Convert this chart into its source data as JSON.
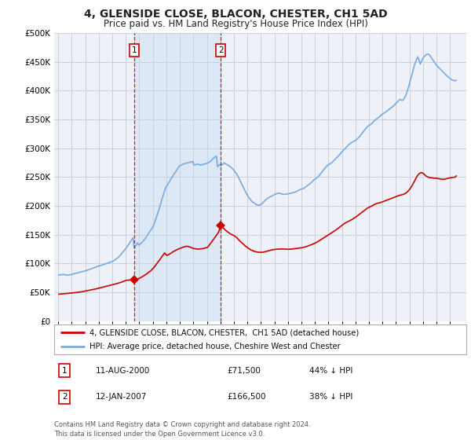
{
  "title": "4, GLENSIDE CLOSE, BLACON, CHESTER, CH1 5AD",
  "subtitle": "Price paid vs. HM Land Registry's House Price Index (HPI)",
  "title_fontsize": 10,
  "subtitle_fontsize": 8.5,
  "ylim": [
    0,
    500000
  ],
  "yticks": [
    0,
    50000,
    100000,
    150000,
    200000,
    250000,
    300000,
    350000,
    400000,
    450000,
    500000
  ],
  "background_color": "#ffffff",
  "chart_bg_color": "#eef2f8",
  "grid_color": "#c8d0dc",
  "sale_color": "#cc0000",
  "hpi_color": "#7aaadd",
  "shade_color": "#dce8f5",
  "sales": [
    {
      "date_num": 2000.61,
      "price": 71500,
      "label": "1"
    },
    {
      "date_num": 2007.03,
      "price": 166500,
      "label": "2"
    }
  ],
  "footer_line1": "Contains HM Land Registry data © Crown copyright and database right 2024.",
  "footer_line2": "This data is licensed under the Open Government Licence v3.0.",
  "legend_line1": "4, GLENSIDE CLOSE, BLACON, CHESTER,  CH1 5AD (detached house)",
  "legend_line2": "HPI: Average price, detached house, Cheshire West and Chester",
  "table_rows": [
    {
      "label": "1",
      "date": "11-AUG-2000",
      "price": "£71,500",
      "note": "44% ↓ HPI"
    },
    {
      "label": "2",
      "date": "12-JAN-2007",
      "price": "£166,500",
      "note": "38% ↓ HPI"
    }
  ],
  "hpi_dates": [
    1995.04,
    1995.12,
    1995.21,
    1995.29,
    1995.37,
    1995.46,
    1995.54,
    1995.62,
    1995.71,
    1995.79,
    1995.87,
    1995.96,
    1996.04,
    1996.12,
    1996.21,
    1996.29,
    1996.37,
    1996.46,
    1996.54,
    1996.62,
    1996.71,
    1996.79,
    1996.87,
    1996.96,
    1997.04,
    1997.12,
    1997.21,
    1997.29,
    1997.37,
    1997.46,
    1997.54,
    1997.62,
    1997.71,
    1997.79,
    1997.87,
    1997.96,
    1998.04,
    1998.12,
    1998.21,
    1998.29,
    1998.37,
    1998.46,
    1998.54,
    1998.62,
    1998.71,
    1998.79,
    1998.87,
    1998.96,
    1999.04,
    1999.12,
    1999.21,
    1999.29,
    1999.37,
    1999.46,
    1999.54,
    1999.62,
    1999.71,
    1999.79,
    1999.87,
    1999.96,
    2000.04,
    2000.12,
    2000.21,
    2000.29,
    2000.37,
    2000.46,
    2000.54,
    2000.62,
    2000.71,
    2000.79,
    2000.87,
    2000.96,
    2001.04,
    2001.12,
    2001.21,
    2001.29,
    2001.37,
    2001.46,
    2001.54,
    2001.62,
    2001.71,
    2001.79,
    2001.87,
    2001.96,
    2002.04,
    2002.12,
    2002.21,
    2002.29,
    2002.37,
    2002.46,
    2002.54,
    2002.62,
    2002.71,
    2002.79,
    2002.87,
    2002.96,
    2003.04,
    2003.12,
    2003.21,
    2003.29,
    2003.37,
    2003.46,
    2003.54,
    2003.62,
    2003.71,
    2003.79,
    2003.87,
    2003.96,
    2004.04,
    2004.12,
    2004.21,
    2004.29,
    2004.37,
    2004.46,
    2004.54,
    2004.62,
    2004.71,
    2004.79,
    2004.87,
    2004.96,
    2005.04,
    2005.12,
    2005.21,
    2005.29,
    2005.37,
    2005.46,
    2005.54,
    2005.62,
    2005.71,
    2005.79,
    2005.87,
    2005.96,
    2006.04,
    2006.12,
    2006.21,
    2006.29,
    2006.37,
    2006.46,
    2006.54,
    2006.62,
    2006.71,
    2006.79,
    2006.87,
    2006.96,
    2007.04,
    2007.12,
    2007.21,
    2007.29,
    2007.37,
    2007.46,
    2007.54,
    2007.62,
    2007.71,
    2007.79,
    2007.87,
    2007.96,
    2008.04,
    2008.12,
    2008.21,
    2008.29,
    2008.37,
    2008.46,
    2008.54,
    2008.62,
    2008.71,
    2008.79,
    2008.87,
    2008.96,
    2009.04,
    2009.12,
    2009.21,
    2009.29,
    2009.37,
    2009.46,
    2009.54,
    2009.62,
    2009.71,
    2009.79,
    2009.87,
    2009.96,
    2010.04,
    2010.12,
    2010.21,
    2010.29,
    2010.37,
    2010.46,
    2010.54,
    2010.62,
    2010.71,
    2010.79,
    2010.87,
    2010.96,
    2011.04,
    2011.12,
    2011.21,
    2011.29,
    2011.37,
    2011.46,
    2011.54,
    2011.62,
    2011.71,
    2011.79,
    2011.87,
    2011.96,
    2012.04,
    2012.12,
    2012.21,
    2012.29,
    2012.37,
    2012.46,
    2012.54,
    2012.62,
    2012.71,
    2012.79,
    2012.87,
    2012.96,
    2013.04,
    2013.12,
    2013.21,
    2013.29,
    2013.37,
    2013.46,
    2013.54,
    2013.62,
    2013.71,
    2013.79,
    2013.87,
    2013.96,
    2014.04,
    2014.12,
    2014.21,
    2014.29,
    2014.37,
    2014.46,
    2014.54,
    2014.62,
    2014.71,
    2014.79,
    2014.87,
    2014.96,
    2015.04,
    2015.12,
    2015.21,
    2015.29,
    2015.37,
    2015.46,
    2015.54,
    2015.62,
    2015.71,
    2015.79,
    2015.87,
    2015.96,
    2016.04,
    2016.12,
    2016.21,
    2016.29,
    2016.37,
    2016.46,
    2016.54,
    2016.62,
    2016.71,
    2016.79,
    2016.87,
    2016.96,
    2017.04,
    2017.12,
    2017.21,
    2017.29,
    2017.37,
    2017.46,
    2017.54,
    2017.62,
    2017.71,
    2017.79,
    2017.87,
    2017.96,
    2018.04,
    2018.12,
    2018.21,
    2018.29,
    2018.37,
    2018.46,
    2018.54,
    2018.62,
    2018.71,
    2018.79,
    2018.87,
    2018.96,
    2019.04,
    2019.12,
    2019.21,
    2019.29,
    2019.37,
    2019.46,
    2019.54,
    2019.62,
    2019.71,
    2019.79,
    2019.87,
    2019.96,
    2020.04,
    2020.12,
    2020.21,
    2020.29,
    2020.37,
    2020.46,
    2020.54,
    2020.62,
    2020.71,
    2020.79,
    2020.87,
    2020.96,
    2021.04,
    2021.12,
    2021.21,
    2021.29,
    2021.37,
    2021.46,
    2021.54,
    2021.62,
    2021.71,
    2021.79,
    2021.87,
    2021.96,
    2022.04,
    2022.12,
    2022.21,
    2022.29,
    2022.37,
    2022.46,
    2022.54,
    2022.62,
    2022.71,
    2022.79,
    2022.87,
    2022.96,
    2023.04,
    2023.12,
    2023.21,
    2023.29,
    2023.37,
    2023.46,
    2023.54,
    2023.62,
    2023.71,
    2023.79,
    2023.87,
    2023.96,
    2024.04,
    2024.12,
    2024.21,
    2024.29,
    2024.37,
    2024.46
  ],
  "hpi_values": [
    80500,
    80200,
    80600,
    81000,
    81300,
    80800,
    80200,
    79800,
    80100,
    80400,
    80700,
    81000,
    81500,
    82000,
    82800,
    83500,
    83200,
    83800,
    84500,
    85000,
    85500,
    86000,
    86500,
    87000,
    87500,
    88000,
    88800,
    89500,
    90200,
    91000,
    91800,
    92500,
    93200,
    94000,
    94800,
    95500,
    96000,
    96500,
    97200,
    97800,
    98500,
    99200,
    99800,
    100500,
    101200,
    101800,
    102500,
    103200,
    104000,
    105000,
    106500,
    108000,
    109500,
    111000,
    113000,
    115000,
    117500,
    120000,
    122500,
    125000,
    127500,
    130000,
    133000,
    136000,
    139000,
    142000,
    145000,
    127000,
    130000,
    133000,
    136000,
    132000,
    133500,
    135000,
    137000,
    139000,
    141500,
    144000,
    147000,
    150000,
    153000,
    156000,
    159000,
    162000,
    165000,
    170000,
    176000,
    182000,
    188000,
    194000,
    200000,
    207000,
    214000,
    220000,
    226000,
    232000,
    235000,
    238000,
    241000,
    244500,
    248000,
    251000,
    254000,
    257000,
    260000,
    263000,
    266000,
    269000,
    270000,
    271000,
    272000,
    273000,
    273500,
    274000,
    274500,
    275000,
    275500,
    276000,
    276500,
    277000,
    271000,
    271500,
    272000,
    272500,
    272000,
    271500,
    271000,
    271500,
    272000,
    272500,
    273000,
    273500,
    274000,
    275000,
    276500,
    278000,
    280000,
    282000,
    284000,
    285000,
    286500,
    268000,
    270000,
    272000,
    270000,
    271500,
    273000,
    274500,
    273000,
    272000,
    271000,
    270000,
    268500,
    267000,
    265000,
    263000,
    261000,
    258000,
    255000,
    252000,
    248000,
    244000,
    240000,
    236000,
    232000,
    228000,
    224000,
    220500,
    217000,
    214000,
    211500,
    209000,
    207000,
    205500,
    204000,
    203000,
    202000,
    201500,
    201000,
    202000,
    203000,
    205000,
    207000,
    209000,
    211000,
    212500,
    214000,
    215000,
    216000,
    217000,
    218000,
    219000,
    220000,
    221000,
    221500,
    222000,
    222000,
    221500,
    221000,
    220500,
    220000,
    220000,
    220500,
    221000,
    221000,
    221500,
    222000,
    222500,
    223000,
    223500,
    224000,
    225000,
    226000,
    227000,
    228000,
    229000,
    229500,
    230000,
    231000,
    232500,
    234000,
    235500,
    237000,
    238500,
    240000,
    242000,
    244000,
    246000,
    247000,
    248500,
    250000,
    252000,
    254500,
    257000,
    259500,
    262000,
    264500,
    267000,
    269000,
    271000,
    272000,
    273000,
    274500,
    276000,
    278000,
    280000,
    282000,
    284000,
    286000,
    288000,
    290500,
    293000,
    295000,
    297000,
    299000,
    301000,
    303000,
    305000,
    307000,
    308500,
    310000,
    311000,
    312000,
    313000,
    314500,
    316000,
    318000,
    320000,
    322500,
    325000,
    327500,
    330000,
    332500,
    335000,
    337000,
    339000,
    340000,
    341500,
    343000,
    345000,
    347000,
    349000,
    350500,
    352000,
    353500,
    355000,
    357000,
    359000,
    360000,
    361000,
    362500,
    364000,
    365500,
    367000,
    368500,
    370000,
    371500,
    373000,
    375000,
    377000,
    379000,
    381000,
    383000,
    385000,
    384000,
    383000,
    384000,
    387000,
    391000,
    396000,
    402000,
    409000,
    416000,
    423000,
    430000,
    438000,
    445000,
    450500,
    455000,
    459000,
    452000,
    446000,
    450000,
    455000,
    458000,
    460000,
    462000,
    463000,
    463500,
    462000,
    460000,
    457000,
    454000,
    451000,
    448000,
    445000,
    443000,
    441000,
    439000,
    437000,
    435000,
    433000,
    431000,
    429000,
    427000,
    425000,
    423500,
    422000,
    420000,
    419000,
    418000,
    417500,
    417000,
    418000
  ],
  "sale_dates": [
    1995.04,
    1995.21,
    1995.37,
    1995.54,
    1995.71,
    1995.87,
    1996.04,
    1996.21,
    1996.37,
    1996.54,
    1996.71,
    1996.87,
    1997.04,
    1997.21,
    1997.37,
    1997.54,
    1997.71,
    1997.87,
    1998.04,
    1998.21,
    1998.37,
    1998.54,
    1998.71,
    1998.87,
    1999.04,
    1999.21,
    1999.37,
    1999.54,
    1999.71,
    1999.87,
    2000.04,
    2000.21,
    2000.37,
    2000.54,
    2000.61,
    2000.71,
    2000.87,
    2001.04,
    2001.21,
    2001.37,
    2001.54,
    2001.71,
    2001.87,
    2002.04,
    2002.21,
    2002.37,
    2002.54,
    2002.71,
    2002.87,
    2003.04,
    2003.21,
    2003.37,
    2003.54,
    2003.71,
    2003.87,
    2004.04,
    2004.21,
    2004.37,
    2004.54,
    2004.71,
    2004.87,
    2005.04,
    2005.21,
    2005.37,
    2005.54,
    2005.71,
    2005.87,
    2006.04,
    2006.21,
    2006.37,
    2006.54,
    2006.71,
    2006.87,
    2007.03,
    2007.04,
    2007.21,
    2007.37,
    2007.54,
    2007.71,
    2007.87,
    2008.04,
    2008.21,
    2008.37,
    2008.54,
    2008.71,
    2008.87,
    2009.04,
    2009.21,
    2009.37,
    2009.54,
    2009.71,
    2009.87,
    2010.04,
    2010.21,
    2010.37,
    2010.54,
    2010.71,
    2010.87,
    2011.04,
    2011.21,
    2011.37,
    2011.54,
    2011.71,
    2011.87,
    2012.04,
    2012.21,
    2012.37,
    2012.54,
    2012.71,
    2012.87,
    2013.04,
    2013.21,
    2013.37,
    2013.54,
    2013.71,
    2013.87,
    2014.04,
    2014.21,
    2014.37,
    2014.54,
    2014.71,
    2014.87,
    2015.04,
    2015.21,
    2015.37,
    2015.54,
    2015.71,
    2015.87,
    2016.04,
    2016.21,
    2016.37,
    2016.54,
    2016.71,
    2016.87,
    2017.04,
    2017.21,
    2017.37,
    2017.54,
    2017.71,
    2017.87,
    2018.04,
    2018.21,
    2018.37,
    2018.54,
    2018.71,
    2018.87,
    2019.04,
    2019.21,
    2019.37,
    2019.54,
    2019.71,
    2019.87,
    2020.04,
    2020.21,
    2020.37,
    2020.54,
    2020.71,
    2020.87,
    2021.04,
    2021.21,
    2021.37,
    2021.54,
    2021.71,
    2021.87,
    2022.04,
    2022.21,
    2022.37,
    2022.54,
    2022.71,
    2022.87,
    2023.04,
    2023.21,
    2023.37,
    2023.54,
    2023.71,
    2023.87,
    2024.04,
    2024.21,
    2024.37,
    2024.46
  ],
  "sale_values": [
    46800,
    47200,
    47500,
    47900,
    48200,
    48600,
    49000,
    49500,
    50000,
    50500,
    51000,
    51800,
    52500,
    53200,
    54000,
    54800,
    55600,
    56500,
    57500,
    58500,
    59500,
    60500,
    61500,
    62500,
    63500,
    64500,
    65500,
    66800,
    68000,
    69500,
    71000,
    71200,
    71400,
    71500,
    71500,
    72000,
    73000,
    75000,
    77000,
    79500,
    82000,
    85000,
    88000,
    92000,
    97000,
    102000,
    107500,
    113000,
    118500,
    114000,
    116000,
    118500,
    121000,
    123000,
    125000,
    126500,
    128000,
    129500,
    130000,
    129000,
    127500,
    126000,
    125500,
    125000,
    125500,
    126000,
    127000,
    128000,
    133000,
    138000,
    143500,
    149000,
    154500,
    166500,
    166000,
    162000,
    158000,
    155000,
    152000,
    150000,
    148000,
    145000,
    141000,
    137000,
    133500,
    130000,
    127000,
    124500,
    122500,
    121000,
    120000,
    119500,
    119500,
    120000,
    121000,
    122000,
    123000,
    124000,
    124500,
    125000,
    125200,
    125400,
    125200,
    125000,
    124800,
    125000,
    125500,
    126000,
    126500,
    127000,
    127500,
    128500,
    129500,
    131000,
    132500,
    134000,
    136000,
    138000,
    140500,
    143000,
    145500,
    148000,
    150500,
    153000,
    155500,
    158000,
    161000,
    164000,
    167000,
    170000,
    172000,
    174000,
    176000,
    178500,
    181000,
    184000,
    187000,
    190000,
    193000,
    196000,
    198000,
    200000,
    202000,
    204000,
    205000,
    206000,
    207500,
    209000,
    210500,
    212000,
    213500,
    215000,
    216500,
    218000,
    219000,
    220000,
    222000,
    225000,
    230000,
    236000,
    243000,
    251000,
    256000,
    258000,
    256000,
    252000,
    250000,
    249000,
    248500,
    248000,
    248000,
    247000,
    246500,
    246000,
    247000,
    248000,
    249000,
    249500,
    250000,
    252000
  ]
}
